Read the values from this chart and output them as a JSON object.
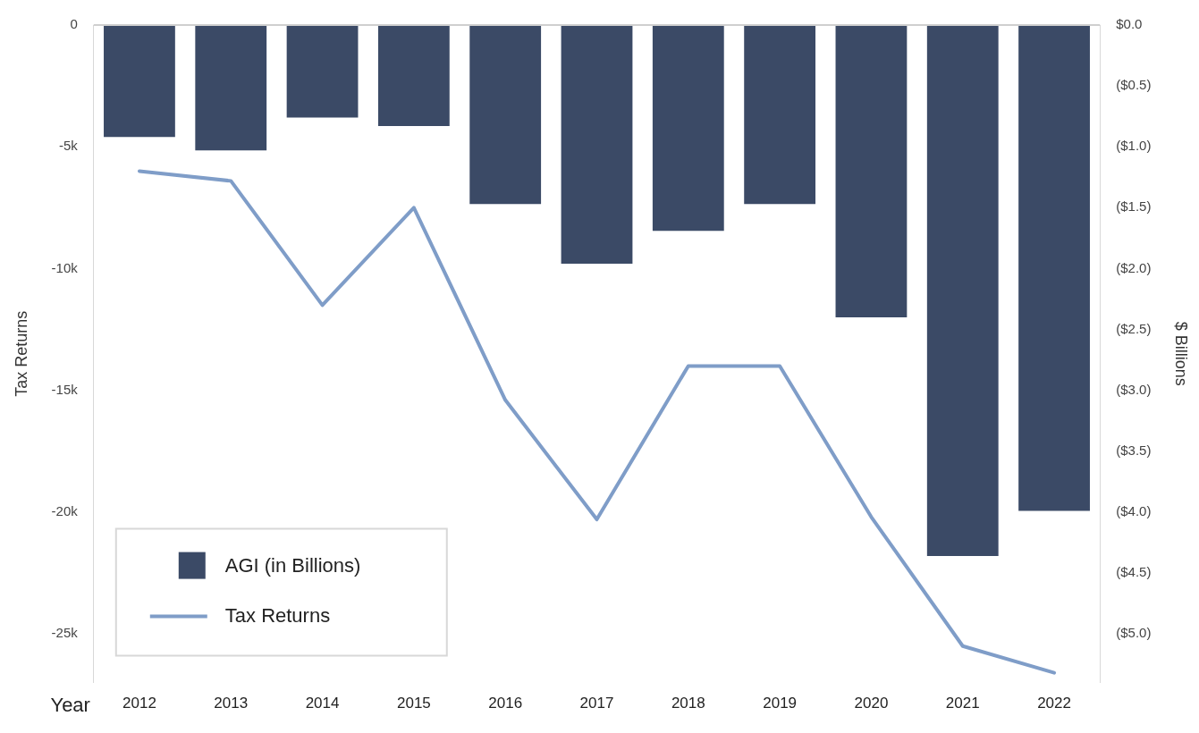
{
  "chart_data": {
    "type": "bar",
    "xlabel": "Year",
    "ylabel": "Tax Returns",
    "y2label": "$ Billions",
    "categories": [
      "2012",
      "2013",
      "2014",
      "2015",
      "2016",
      "2017",
      "2018",
      "2019",
      "2020",
      "2021",
      "2022"
    ],
    "series": [
      {
        "name": "AGI (in Billions)",
        "axis": "y2",
        "color": "#3b4a66",
        "values": [
          -0.92,
          -1.03,
          -0.76,
          -0.83,
          -1.47,
          -1.96,
          -1.69,
          -1.47,
          -2.4,
          -4.36,
          -3.99
        ]
      },
      {
        "name": "Tax Returns",
        "type": "line",
        "axis": "y",
        "color": "#7f9dc8",
        "values": [
          -6000,
          -6400,
          -11500,
          -7500,
          -15400,
          -20300,
          -14000,
          -14000,
          -20200,
          -25500,
          -26600
        ]
      }
    ],
    "ylim": [
      -27000,
      0
    ],
    "yticks": [
      {
        "value": -25000,
        "label": "-25k"
      },
      {
        "value": -20000,
        "label": "-20k"
      },
      {
        "value": -15000,
        "label": "-15k"
      },
      {
        "value": -10000,
        "label": "-10k"
      },
      {
        "value": -5000,
        "label": "-5k"
      },
      0
    ],
    "y2lim": [
      -5.4,
      0
    ],
    "y2ticks": [
      {
        "value": -5,
        "label": "($5.0)"
      },
      {
        "value": -4.5,
        "label": "($4.5)"
      },
      {
        "value": -4,
        "label": "($4.0)"
      },
      {
        "value": -3.5,
        "label": "($3.5)"
      },
      {
        "value": -3,
        "label": "($3.0)"
      },
      {
        "value": -2.5,
        "label": "($2.5)"
      },
      {
        "value": -2,
        "label": "($2.0)"
      },
      {
        "value": -1.5,
        "label": "($1.5)"
      },
      {
        "value": -1,
        "label": "($1.0)"
      },
      {
        "value": -0.5,
        "label": "($0.5)"
      },
      {
        "value": 0,
        "label": "$0.0"
      }
    ],
    "grid": false,
    "legend": "bottom left"
  }
}
